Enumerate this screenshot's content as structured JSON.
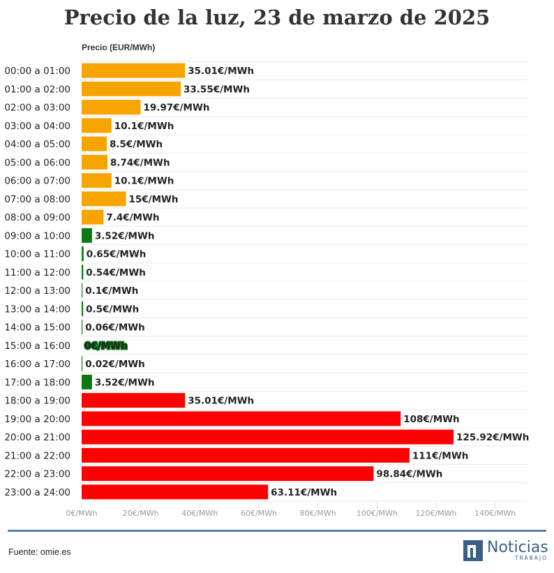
{
  "chart_data": {
    "type": "bar",
    "orientation": "horizontal",
    "title": "Precio de la luz, 23 de marzo de 2025",
    "series_name": "Precio (EUR/MWh)",
    "categories": [
      "00:00 a 01:00",
      "01:00 a 02:00",
      "02:00 a 03:00",
      "03:00 a 04:00",
      "04:00 a 05:00",
      "05:00 a 06:00",
      "06:00 a 07:00",
      "07:00 a 08:00",
      "08:00 a 09:00",
      "09:00 a 10:00",
      "10:00 a 11:00",
      "11:00 a 12:00",
      "12:00 a 13:00",
      "13:00 a 14:00",
      "14:00 a 15:00",
      "15:00 a 16:00",
      "16:00 a 17:00",
      "17:00 a 18:00",
      "18:00 a 19:00",
      "19:00 a 20:00",
      "20:00 a 21:00",
      "21:00 a 22:00",
      "22:00 a 23:00",
      "23:00 a 24:00"
    ],
    "values": [
      35.01,
      33.55,
      19.97,
      10.1,
      8.5,
      8.74,
      10.1,
      15,
      7.4,
      3.52,
      0.65,
      0.54,
      0.1,
      0.5,
      0.06,
      0,
      0.02,
      3.52,
      35.01,
      108,
      125.92,
      111,
      98.84,
      63.11
    ],
    "value_labels": [
      "35.01€/MWh",
      "33.55€/MWh",
      "19.97€/MWh",
      "10.1€/MWh",
      "8.5€/MWh",
      "8.74€/MWh",
      "10.1€/MWh",
      "15€/MWh",
      "7.4€/MWh",
      "3.52€/MWh",
      "0.65€/MWh",
      "0.54€/MWh",
      "0.1€/MWh",
      "0.5€/MWh",
      "0.06€/MWh",
      "0€/MWh",
      "0.02€/MWh",
      "3.52€/MWh",
      "35.01€/MWh",
      "108€/MWh",
      "125.92€/MWh",
      "111€/MWh",
      "98.84€/MWh",
      "63.11€/MWh"
    ],
    "bar_colors": [
      "#f7a400",
      "#f7a400",
      "#f7a400",
      "#f7a400",
      "#f7a400",
      "#f7a400",
      "#f7a400",
      "#f7a400",
      "#f7a400",
      "#0b7a12",
      "#0b7a12",
      "#0b7a12",
      "#0b7a12",
      "#0b7a12",
      "#0b7a12",
      "#0b7a12",
      "#0b7a12",
      "#0b7a12",
      "#ff0000",
      "#ff0000",
      "#ff0000",
      "#ff0000",
      "#ff0000",
      "#ff0000"
    ],
    "xlim": [
      0,
      150
    ],
    "xticks": [
      0,
      20,
      40,
      60,
      80,
      100,
      120,
      140
    ],
    "xtick_labels": [
      "0€/MWh",
      "20€/MWh",
      "40€/MWh",
      "60€/MWh",
      "80€/MWh",
      "100€/MWh",
      "120€/MWh",
      "140€/MWh"
    ],
    "grid": true
  },
  "footer": {
    "source": "Fuente: omie.es",
    "logo_text": "Noticias",
    "logo_subtext": "TRABAJO"
  }
}
